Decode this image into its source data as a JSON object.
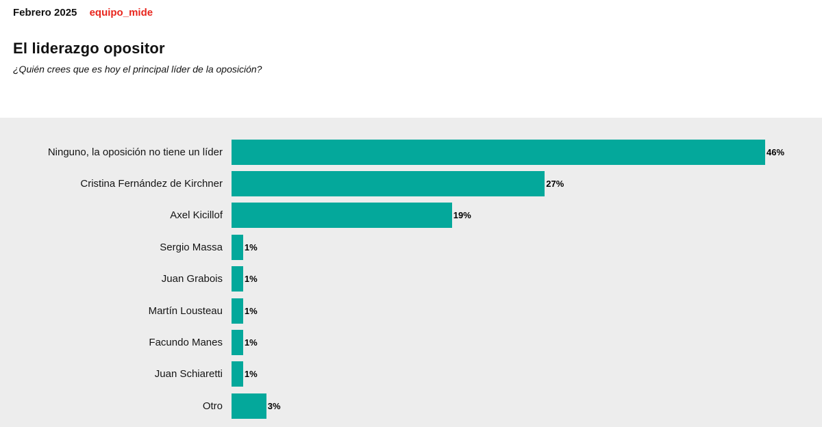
{
  "header": {
    "date": "Febrero 2025",
    "brand": "equipo_mide",
    "title": "El liderazgo opositor",
    "subtitle": "¿Quién crees que es hoy el principal líder de la oposición?"
  },
  "colors": {
    "bar": "#04a89b",
    "chart_background": "#ededed",
    "brand_red": "#e8251d",
    "text": "#111111"
  },
  "chart_data": {
    "type": "bar",
    "orientation": "horizontal",
    "title": "El liderazgo opositor",
    "subtitle": "¿Quién crees que es hoy el principal líder de la oposición?",
    "categories": [
      "Ninguno, la oposición no tiene un líder",
      "Cristina Fernández de Kirchner",
      "Axel Kicillof",
      "Sergio Massa",
      "Juan Grabois",
      "Martín Lousteau",
      "Facundo Manes",
      "Juan Schiaretti",
      "Otro"
    ],
    "values": [
      46,
      27,
      19,
      1,
      1,
      1,
      1,
      1,
      3
    ],
    "value_suffix": "%",
    "xlabel": "",
    "ylabel": "",
    "xlim": [
      0,
      46
    ],
    "grid": false,
    "legend": false,
    "bar_color": "#04a89b",
    "data_labels": true
  }
}
